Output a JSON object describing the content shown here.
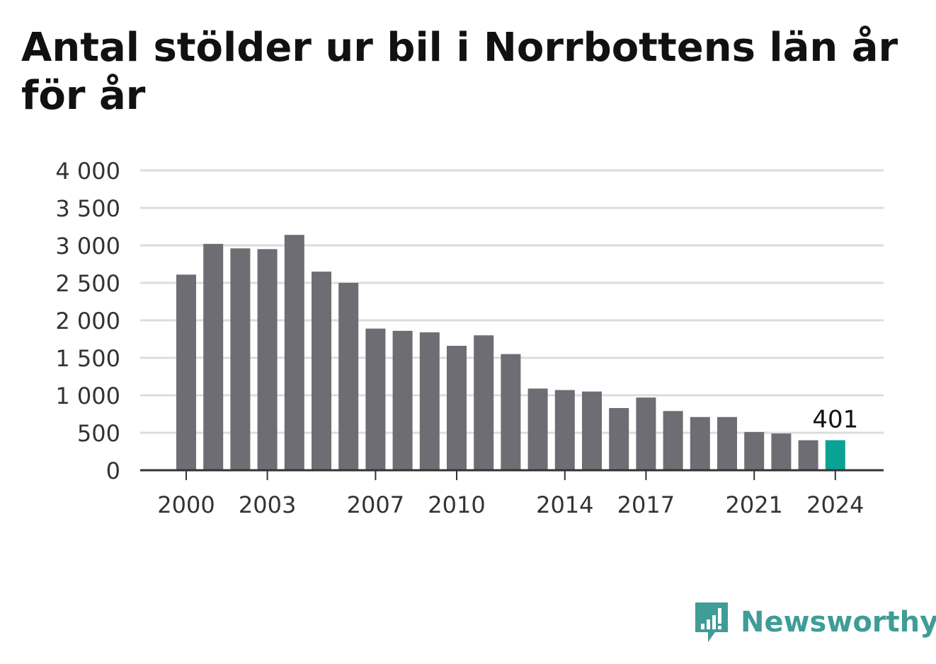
{
  "title": "Antal stölder ur bil i Norrbottens län år för år",
  "brand": {
    "name": "Newsworthy",
    "icon": "newsworthy-logo-icon",
    "color": "#3f9c97"
  },
  "colors": {
    "bar": "#6e6d73",
    "highlight": "#0aa393",
    "grid": "#dcdcdc",
    "axis": "#333333"
  },
  "chart_data": {
    "type": "bar",
    "title": "Antal stölder ur bil i Norrbottens län år för år",
    "xlabel": "",
    "ylabel": "",
    "ylim": [
      0,
      4000
    ],
    "yticks": [
      0,
      500,
      1000,
      1500,
      2000,
      2500,
      3000,
      3500,
      4000
    ],
    "ytick_labels": [
      "0",
      "500",
      "1 000",
      "1 500",
      "2 000",
      "2 500",
      "3 000",
      "3 500",
      "4 000"
    ],
    "categories": [
      "2000",
      "2001",
      "2002",
      "2003",
      "2004",
      "2005",
      "2006",
      "2007",
      "2008",
      "2009",
      "2010",
      "2011",
      "2012",
      "2013",
      "2014",
      "2015",
      "2016",
      "2017",
      "2018",
      "2019",
      "2020",
      "2021",
      "2022",
      "2023",
      "2024"
    ],
    "xtick_labels": [
      "2000",
      "2003",
      "2007",
      "2010",
      "2014",
      "2017",
      "2021",
      "2024"
    ],
    "values": [
      2610,
      3020,
      2960,
      2950,
      3140,
      2650,
      2500,
      1890,
      1860,
      1840,
      1660,
      1800,
      1550,
      1090,
      1070,
      1050,
      830,
      970,
      790,
      710,
      710,
      510,
      490,
      400,
      401
    ],
    "highlight_index": 24,
    "data_label": "401",
    "grid": true,
    "legend": "none"
  }
}
